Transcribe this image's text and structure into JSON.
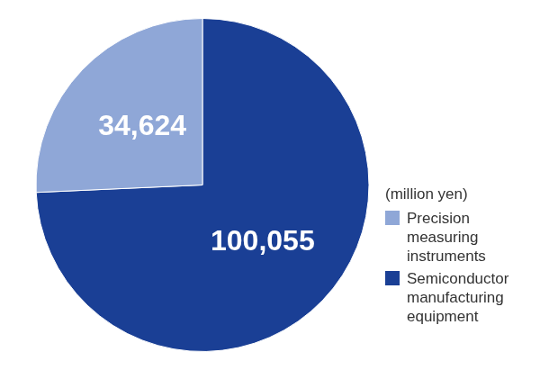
{
  "chart_data": {
    "type": "pie",
    "categories": [
      "Semiconductor manufacturing equipment",
      "Precision measuring instruments"
    ],
    "values": [
      100055,
      34624
    ],
    "value_labels": [
      "100,055",
      "34,624"
    ],
    "colors": [
      "#1a3f95",
      "#8fa7d7"
    ],
    "data_labels": true,
    "legend": "right",
    "annotations": [
      "(million yen)"
    ]
  }
}
